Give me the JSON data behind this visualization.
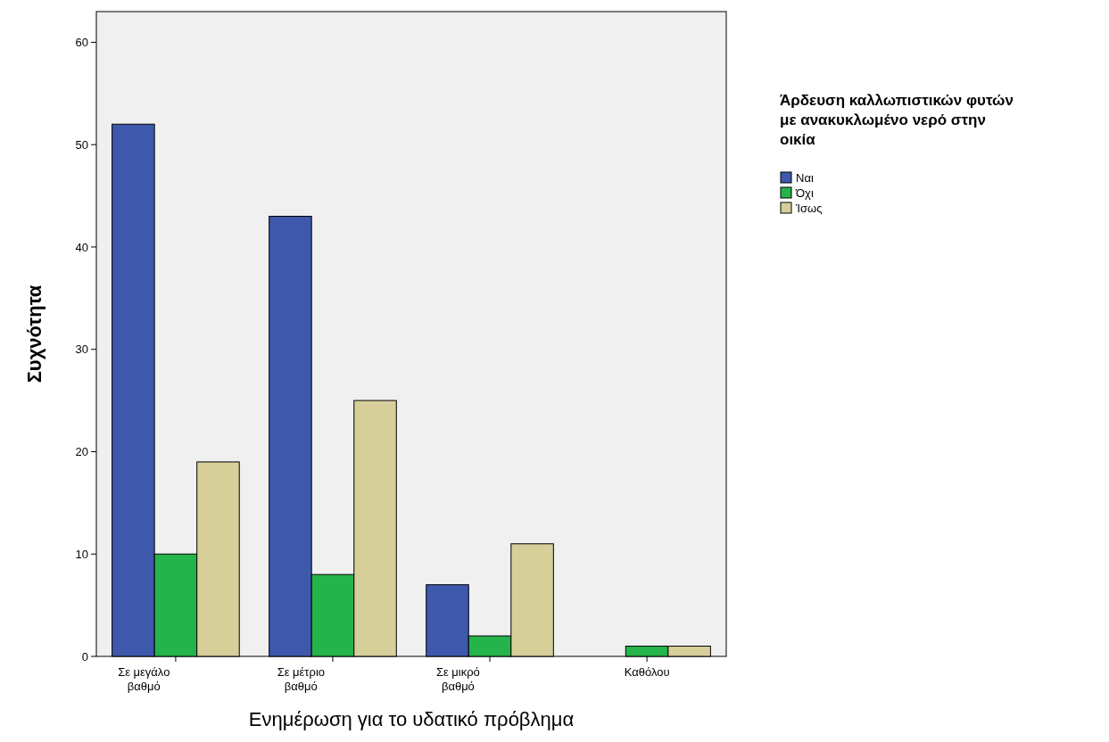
{
  "chart_data": {
    "type": "bar",
    "xlabel": "Ενημέρωση για το υδατικό πρόβλημα",
    "ylabel": "Συχνότητα",
    "legend_title": "Άρδευση καλλωπιστικών φυτών με ανακυκλωμένο νερό στην οικία",
    "categories": [
      "Σε μεγάλο βαθμό",
      "Σε μέτριο βαθμό",
      "Σε μικρό βαθμό",
      "Καθόλου"
    ],
    "series": [
      {
        "name": "Ναι",
        "color": "#3e58ac",
        "values": [
          52,
          43,
          7,
          null
        ]
      },
      {
        "name": "Όχι",
        "color": "#25b44b",
        "values": [
          10,
          8,
          2,
          1
        ]
      },
      {
        "name": "Ίσως",
        "color": "#d6cf9a",
        "values": [
          19,
          25,
          11,
          1
        ]
      }
    ],
    "ylim": [
      0,
      63
    ],
    "yticks": [
      0,
      10,
      20,
      30,
      40,
      50,
      60
    ],
    "grid": false,
    "legend": "right"
  }
}
